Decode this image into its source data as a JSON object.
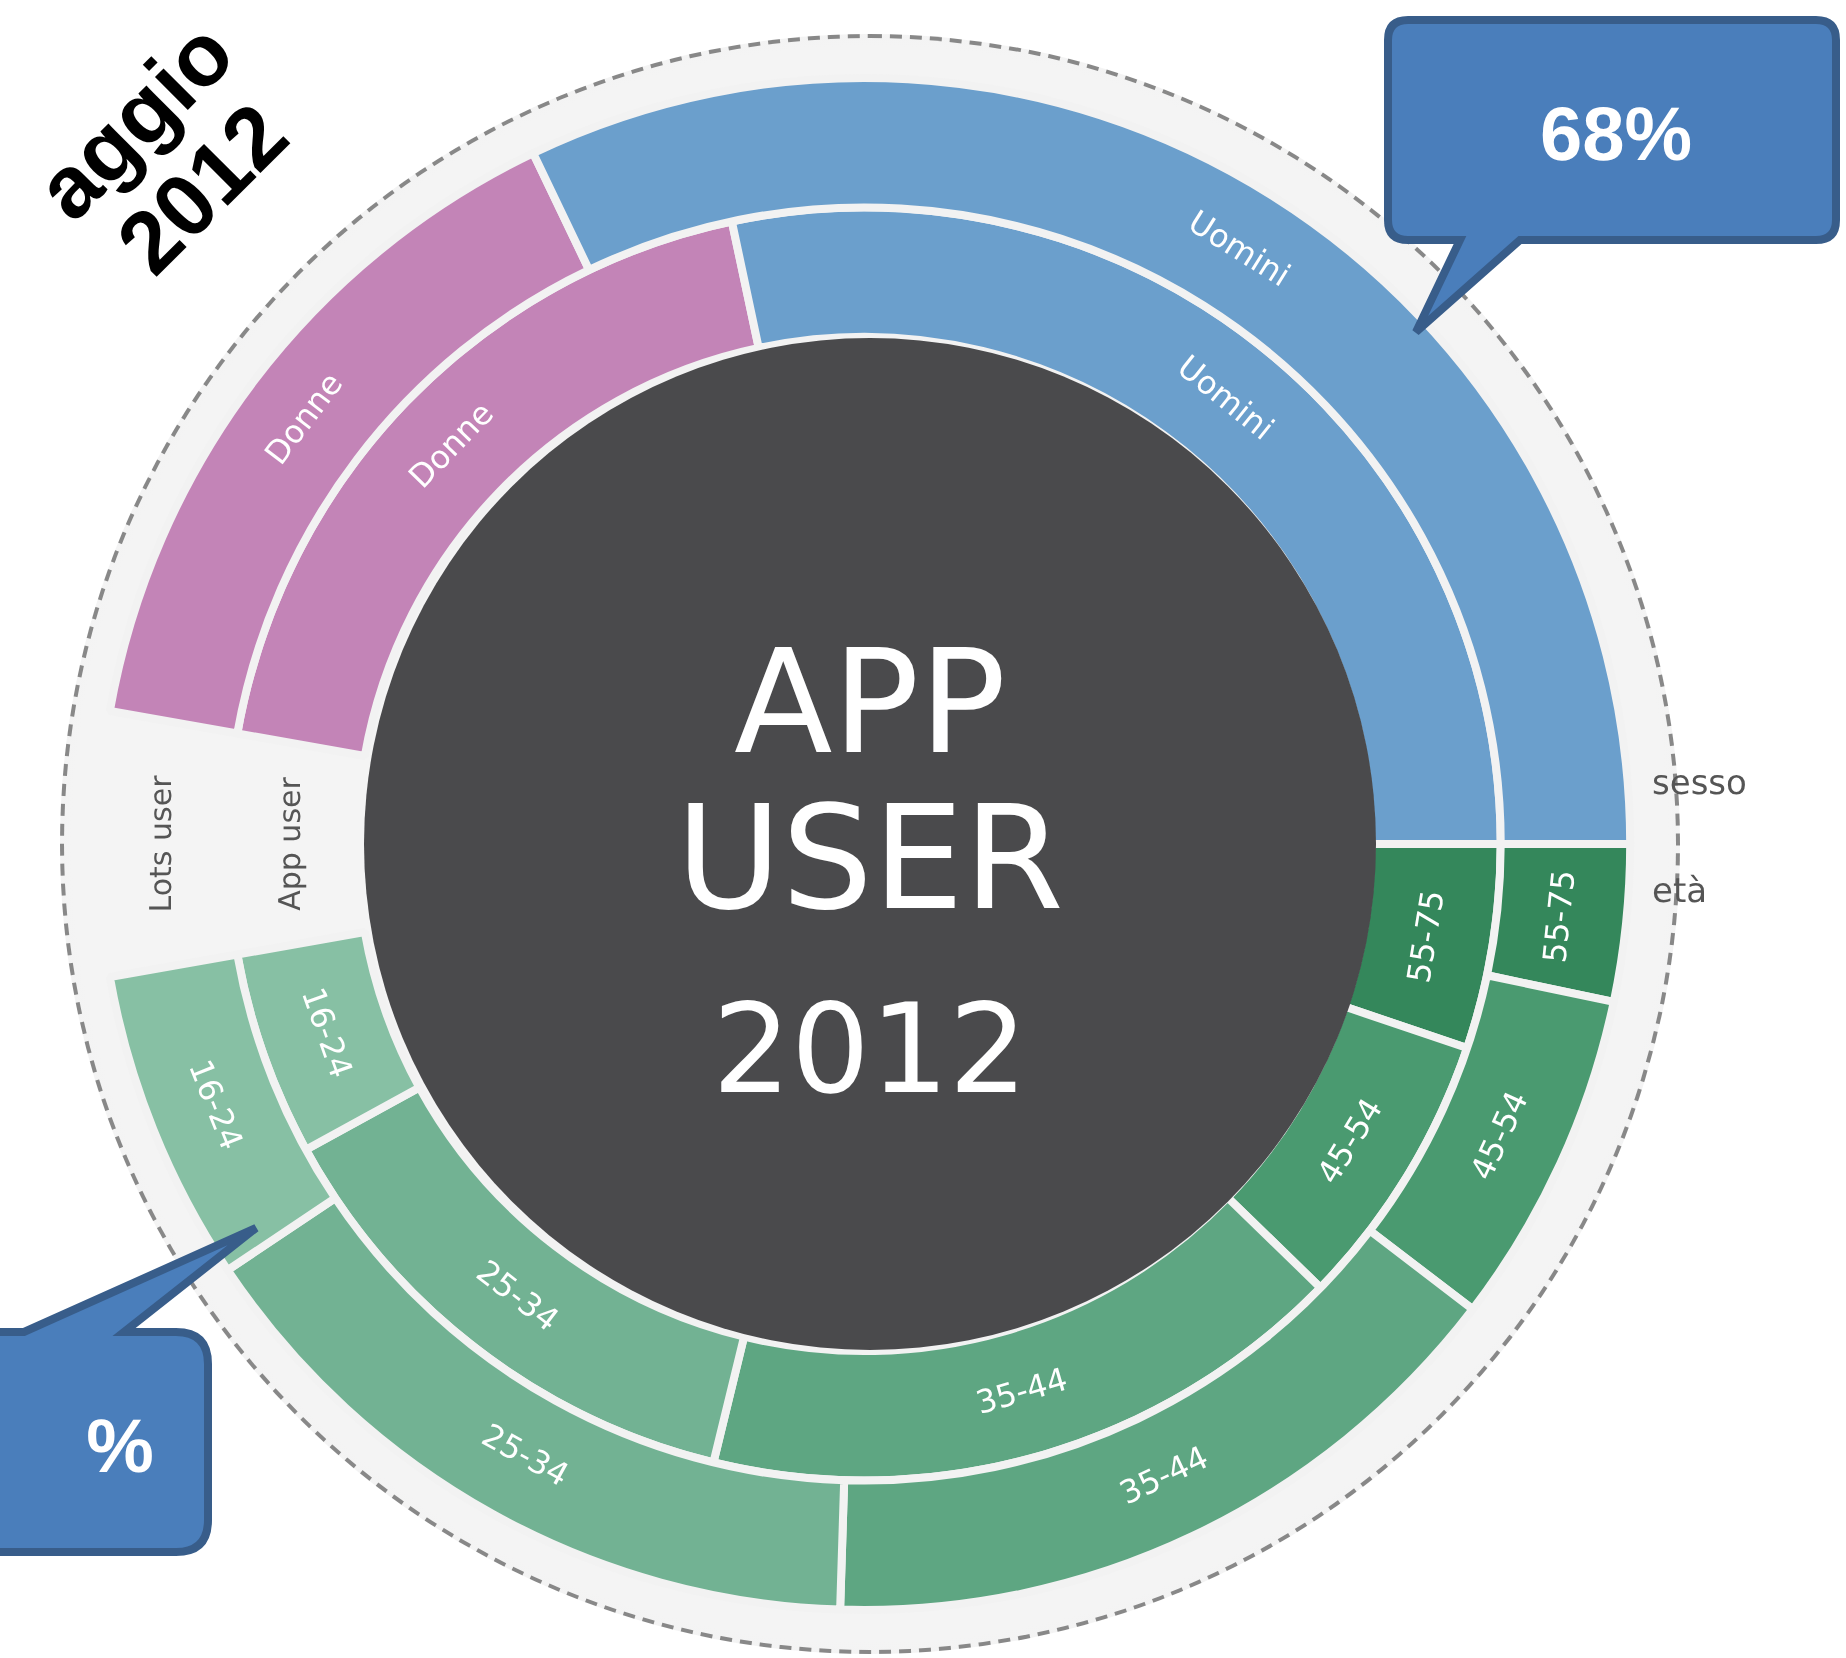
{
  "chart_data": {
    "type": "donut",
    "title": "APP USER",
    "subtitle": "2012",
    "categories": [
      "Donne",
      "Uomini",
      "55-75",
      "45-54",
      "35-44",
      "25-34",
      "16-24"
    ],
    "series": [
      {
        "name": "Lots user",
        "values": [
          16,
          34,
          3.5,
          7.5,
          16,
          16,
          7
        ],
        "colors": [
          "#c384b7",
          "#6b9fcc",
          "#34875b",
          "#4a9a70",
          "#5ea682",
          "#72b293",
          "#87c0a4"
        ]
      },
      {
        "name": "App user",
        "values": [
          20,
          30,
          5.5,
          7.5,
          17.5,
          14,
          5.5
        ],
        "colors": [
          "#c384b7",
          "#6b9fcc",
          "#34875b",
          "#4a9a70",
          "#5ea682",
          "#72b293",
          "#87c0a4"
        ]
      }
    ],
    "annotations": [
      "68%",
      "%",
      "aggio 2012",
      "sesso",
      "età"
    ],
    "legend": false
  }
}
